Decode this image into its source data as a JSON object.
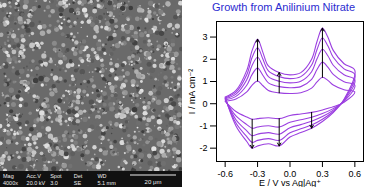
{
  "chart_data": {
    "type": "line",
    "title": "Growth from Anilinium Nitrate",
    "x_label": "E / V vs Ag|Ag⁺",
    "y_label": "I / mA cm⁻²",
    "color": "#9b3fe0",
    "x": [
      -0.6,
      -0.5,
      -0.4,
      -0.35,
      -0.3,
      -0.25,
      -0.2,
      -0.1,
      0,
      0.1,
      0.2,
      0.25,
      0.3,
      0.35,
      0.4,
      0.5,
      0.6,
      0.5,
      0.4,
      0.3,
      0.2,
      0.1,
      0,
      -0.1,
      -0.2,
      -0.3,
      -0.35,
      -0.4,
      -0.5,
      -0.6
    ],
    "series": [
      {
        "values": [
          0.11,
          0.21,
          0.53,
          0.84,
          1.02,
          0.81,
          0.6,
          0.49,
          0.46,
          0.49,
          0.7,
          0.98,
          1.19,
          1.05,
          0.84,
          0.63,
          0.53,
          0.07,
          -0.14,
          -0.28,
          -0.39,
          -0.46,
          -0.53,
          -0.67,
          -0.63,
          -0.67,
          -0.7,
          -0.6,
          -0.35,
          0.11
        ]
      },
      {
        "values": [
          0.17,
          0.33,
          0.83,
          1.32,
          1.6,
          1.27,
          0.94,
          0.77,
          0.72,
          0.77,
          1.1,
          1.54,
          1.87,
          1.65,
          1.32,
          0.99,
          0.83,
          0.11,
          -0.22,
          -0.44,
          -0.61,
          -0.72,
          -0.83,
          -1.05,
          -0.99,
          -1.05,
          -1.1,
          -0.94,
          -0.55,
          0.17
        ]
      },
      {
        "values": [
          0.22,
          0.43,
          1.08,
          1.73,
          2.09,
          1.66,
          1.22,
          1.01,
          0.94,
          1.01,
          1.44,
          2.02,
          2.45,
          2.16,
          1.73,
          1.3,
          1.08,
          0.14,
          -0.29,
          -0.58,
          -0.79,
          -0.94,
          -1.08,
          -1.37,
          -1.3,
          -1.37,
          -1.44,
          -1.22,
          -0.72,
          0.22
        ]
      },
      {
        "values": [
          0.26,
          0.52,
          1.3,
          2.09,
          2.52,
          2.0,
          1.48,
          1.22,
          1.13,
          1.22,
          1.74,
          2.44,
          2.96,
          2.61,
          2.09,
          1.57,
          1.31,
          0.17,
          -0.35,
          -0.7,
          -0.96,
          -1.13,
          -1.31,
          -1.65,
          -1.57,
          -1.65,
          -1.74,
          -1.48,
          -0.87,
          0.26
        ]
      },
      {
        "values": [
          0.3,
          0.6,
          1.5,
          2.4,
          2.9,
          2.3,
          1.7,
          1.4,
          1.3,
          1.4,
          2.0,
          2.8,
          3.4,
          3.0,
          2.4,
          1.8,
          1.5,
          0.2,
          -0.4,
          -0.8,
          -1.1,
          -1.3,
          -1.5,
          -1.9,
          -1.8,
          -1.9,
          -2.0,
          -1.7,
          -1.0,
          0.3
        ]
      }
    ],
    "xlim": [
      -0.68,
      0.68
    ],
    "xticks": [
      -0.6,
      -0.3,
      {
        "value": 0,
        "label": "0.0"
      },
      0.3,
      0.6
    ],
    "ylim": [
      -2.6,
      3.7
    ],
    "yticks": [
      -2,
      -1,
      0,
      1,
      2,
      3
    ],
    "grid": false
  },
  "sem_image": {
    "header": [
      "Mag",
      "Acc.V",
      "Spot",
      "Det",
      "WD"
    ],
    "values": [
      "4000x",
      "20.0 kV",
      "3.0",
      "SE",
      "5.1 mm"
    ],
    "scale_bar": "20 μm"
  }
}
